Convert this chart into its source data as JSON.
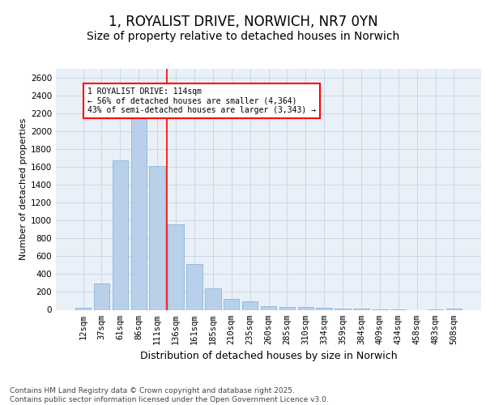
{
  "title": "1, ROYALIST DRIVE, NORWICH, NR7 0YN",
  "subtitle": "Size of property relative to detached houses in Norwich",
  "xlabel": "Distribution of detached houses by size in Norwich",
  "ylabel": "Number of detached properties",
  "categories": [
    "12sqm",
    "37sqm",
    "61sqm",
    "86sqm",
    "111sqm",
    "136sqm",
    "161sqm",
    "185sqm",
    "210sqm",
    "235sqm",
    "260sqm",
    "285sqm",
    "310sqm",
    "334sqm",
    "359sqm",
    "384sqm",
    "409sqm",
    "434sqm",
    "458sqm",
    "483sqm",
    "508sqm"
  ],
  "values": [
    20,
    295,
    1670,
    2155,
    1610,
    960,
    515,
    245,
    120,
    95,
    45,
    30,
    30,
    20,
    10,
    10,
    5,
    5,
    0,
    5,
    10
  ],
  "bar_color": "#b8d0ea",
  "bar_edge_color": "#7aaed4",
  "grid_color": "#c8d8e8",
  "background_color": "#eaf0f8",
  "vline_color": "red",
  "annotation_text": "1 ROYALIST DRIVE: 114sqm\n← 56% of detached houses are smaller (4,364)\n43% of semi-detached houses are larger (3,343) →",
  "annotation_box_color": "red",
  "ylim": [
    0,
    2700
  ],
  "yticks": [
    0,
    200,
    400,
    600,
    800,
    1000,
    1200,
    1400,
    1600,
    1800,
    2000,
    2200,
    2400,
    2600
  ],
  "footer_text": "Contains HM Land Registry data © Crown copyright and database right 2025.\nContains public sector information licensed under the Open Government Licence v3.0.",
  "title_fontsize": 12,
  "subtitle_fontsize": 10,
  "xlabel_fontsize": 9,
  "ylabel_fontsize": 8,
  "tick_fontsize": 7.5,
  "footer_fontsize": 6.5,
  "ann_fontsize": 7
}
